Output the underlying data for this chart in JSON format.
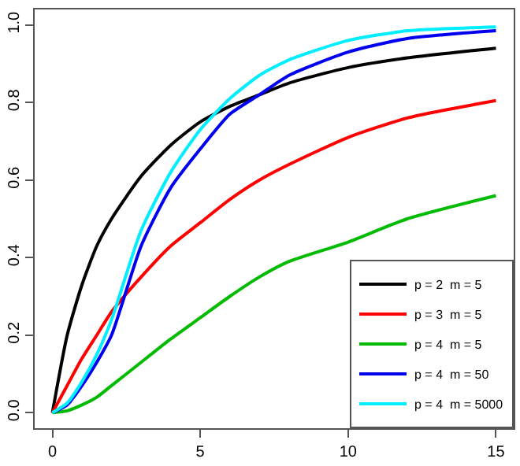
{
  "chart_data": {
    "type": "line",
    "x": [
      0,
      0.5,
      1,
      1.5,
      2,
      3,
      4,
      5,
      6,
      7,
      8,
      10,
      12,
      15
    ],
    "series": [
      {
        "name": "p = 2  m = 5",
        "color": "#000000",
        "values": [
          0,
          0.2,
          0.33,
          0.43,
          0.5,
          0.61,
          0.69,
          0.75,
          0.79,
          0.82,
          0.85,
          0.89,
          0.915,
          0.94
        ]
      },
      {
        "name": "p = 3  m = 5",
        "color": "#ff0000",
        "values": [
          0,
          0.07,
          0.14,
          0.2,
          0.26,
          0.35,
          0.43,
          0.49,
          0.55,
          0.6,
          0.64,
          0.71,
          0.76,
          0.805
        ]
      },
      {
        "name": "p = 4  m = 5",
        "color": "#00bb00",
        "values": [
          0,
          0.005,
          0.02,
          0.04,
          0.07,
          0.13,
          0.19,
          0.245,
          0.3,
          0.35,
          0.39,
          0.44,
          0.5,
          0.56
        ]
      },
      {
        "name": "p = 4  m = 50",
        "color": "#0000ee",
        "values": [
          0,
          0.02,
          0.07,
          0.13,
          0.2,
          0.43,
          0.58,
          0.68,
          0.77,
          0.82,
          0.87,
          0.93,
          0.965,
          0.985
        ]
      },
      {
        "name": "p = 4  m = 5000",
        "color": "#00eeff",
        "values": [
          0,
          0.025,
          0.08,
          0.15,
          0.24,
          0.47,
          0.62,
          0.73,
          0.81,
          0.87,
          0.91,
          0.96,
          0.985,
          0.995
        ]
      }
    ],
    "xlim": [
      -0.6,
      15.6
    ],
    "xticks": [
      0,
      5,
      10,
      15
    ],
    "ylim": [
      -0.04,
      1.04
    ],
    "yticks": [
      {
        "value": 0,
        "label": "0.0"
      },
      {
        "value": 0.2,
        "label": "0.2"
      },
      {
        "value": 0.4,
        "label": "0.4"
      },
      {
        "value": 0.6,
        "label": "0.6"
      },
      {
        "value": 0.8,
        "label": "0.8"
      },
      {
        "value": 1,
        "label": "1.0"
      }
    ],
    "legend": "bottom right",
    "marker": "none",
    "line_style": "solid"
  }
}
